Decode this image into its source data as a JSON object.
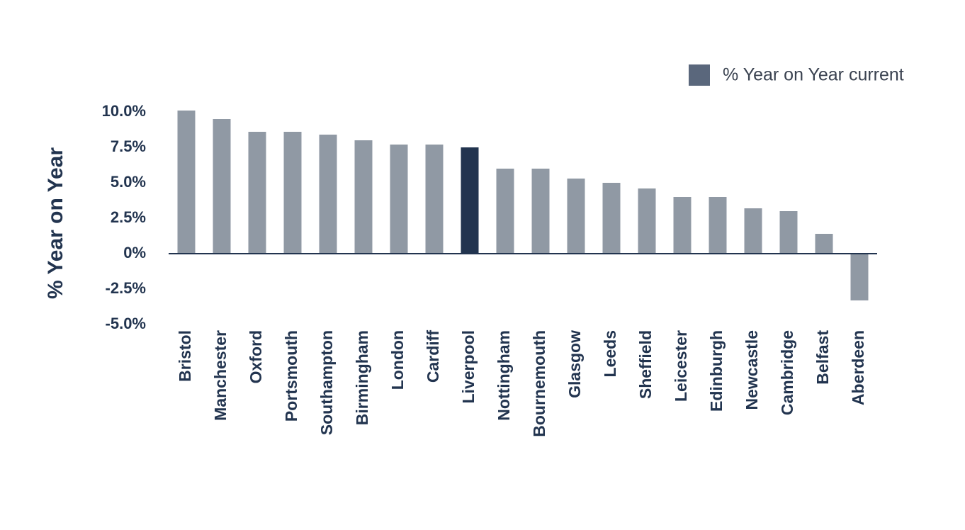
{
  "chart_data": {
    "type": "bar",
    "y_label": "% Year on Year",
    "categories": [
      "Bristol",
      "Manchester",
      "Oxford",
      "Portsmouth",
      "Southampton",
      "Birmingham",
      "London",
      "Cardiff",
      "Liverpool",
      "Nottingham",
      "Bournemouth",
      "Glasgow",
      "Leeds",
      "Sheffield",
      "Leicester",
      "Edinburgh",
      "Newcastle",
      "Cambridge",
      "Belfast",
      "Aberdeen"
    ],
    "series": [
      {
        "name": "% Year on Year current",
        "color": "#5a677c",
        "values": [
          10.1,
          9.5,
          8.6,
          8.6,
          8.4,
          8.0,
          7.7,
          7.7,
          7.5,
          6.0,
          6.0,
          5.3,
          5.0,
          4.6,
          4.0,
          4.0,
          3.2,
          3.0,
          1.4,
          -3.3
        ],
        "bar_colors": [
          "#9099a4",
          "#9099a4",
          "#9099a4",
          "#9099a4",
          "#9099a4",
          "#9099a4",
          "#9099a4",
          "#9099a4",
          "#22344f",
          "#9099a4",
          "#9099a4",
          "#9099a4",
          "#9099a4",
          "#9099a4",
          "#9099a4",
          "#9099a4",
          "#9099a4",
          "#9099a4",
          "#9099a4",
          "#9099a4"
        ]
      }
    ],
    "ylim": [
      -5,
      10
    ],
    "yticks": [
      {
        "value": 10,
        "label": "10.0%"
      },
      {
        "value": 7.5,
        "label": "7.5%"
      },
      {
        "value": 5,
        "label": "5.0%"
      },
      {
        "value": 2.5,
        "label": "2.5%"
      },
      {
        "value": 0,
        "label": "0%"
      },
      {
        "value": -2.5,
        "label": "-2.5%"
      },
      {
        "value": -5,
        "label": "-5.0%"
      }
    ],
    "legend_position": "top-right"
  }
}
